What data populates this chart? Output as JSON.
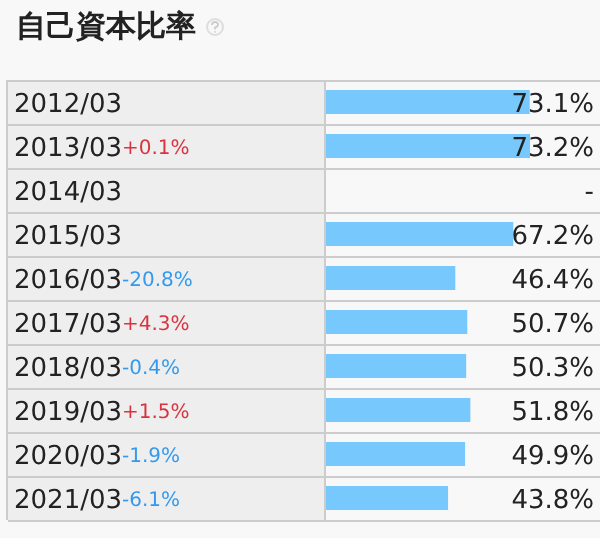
{
  "chart_data": {
    "type": "bar",
    "orientation": "horizontal",
    "title": "自己資本比率",
    "categories": [
      "2012/03",
      "2013/03",
      "2014/03",
      "2015/03",
      "2016/03",
      "2017/03",
      "2018/03",
      "2019/03",
      "2020/03",
      "2021/03"
    ],
    "values": [
      73.1,
      73.2,
      null,
      67.2,
      46.4,
      50.7,
      50.3,
      51.8,
      49.9,
      43.8
    ],
    "value_labels": [
      "73.1%",
      "73.2%",
      "-",
      "67.2%",
      "46.4%",
      "50.7%",
      "50.3%",
      "51.8%",
      "49.9%",
      "43.8%"
    ],
    "color": "#77c8fc",
    "grid": true,
    "annotations": [
      "+0.1%",
      "-20.8%",
      "+4.3%",
      "-0.4%",
      "+1.5%",
      "-1.9%",
      "-6.1%"
    ]
  }
}
